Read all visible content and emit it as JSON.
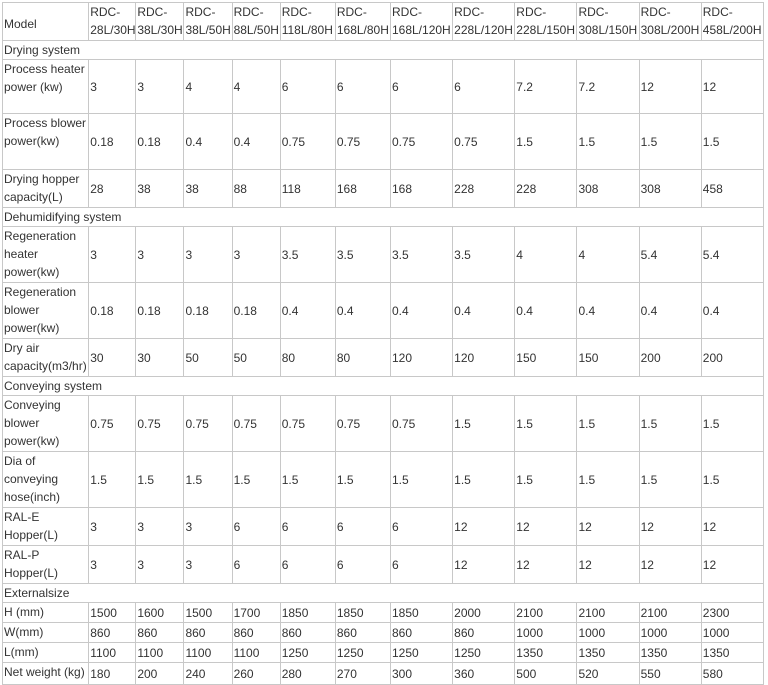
{
  "header": {
    "label": "Model",
    "models": [
      "RDC-28L/30H",
      "RDC-38L/30H",
      "RDC-38L/50H",
      "RDC-88L/50H",
      "RDC-118L/80H",
      "RDC-168L/80H",
      "RDC-168L/120H",
      "RDC-228L/120H",
      "RDC-228L/150H",
      "RDC-308L/150H",
      "RDC-308L/200H",
      "RDC-458L/200H"
    ]
  },
  "sections": [
    {
      "title": "Drying system",
      "rows": [
        {
          "label": "Process heater power (kw)",
          "values": [
            "3",
            "3",
            "4",
            "4",
            "6",
            "6",
            "6",
            "6",
            "7.2",
            "7.2",
            "12",
            "12"
          ]
        },
        {
          "label": "Process blower power(kw)",
          "values": [
            "0.18",
            "0.18",
            "0.4",
            "0.4",
            "0.75",
            "0.75",
            "0.75",
            "0.75",
            "1.5",
            "1.5",
            "1.5",
            "1.5"
          ]
        },
        {
          "label": "Drying hopper capacity(L)",
          "values": [
            "28",
            "38",
            "38",
            "88",
            "118",
            "168",
            "168",
            "228",
            "228",
            "308",
            "308",
            "458"
          ]
        }
      ]
    },
    {
      "title": "Dehumidifying system",
      "rows": [
        {
          "label": "Regeneration heater power(kw)",
          "values": [
            "3",
            "3",
            "3",
            "3",
            "3.5",
            "3.5",
            "3.5",
            "3.5",
            "4",
            "4",
            "5.4",
            "5.4"
          ]
        },
        {
          "label": "Regeneration blower power(kw)",
          "values": [
            "0.18",
            "0.18",
            "0.18",
            "0.18",
            "0.4",
            "0.4",
            "0.4",
            "0.4",
            "0.4",
            "0.4",
            "0.4",
            "0.4"
          ]
        },
        {
          "label": "Dry air capacity(m3/hr)",
          "values": [
            "30",
            "30",
            "50",
            "50",
            "80",
            "80",
            "120",
            "120",
            "150",
            "150",
            "200",
            "200"
          ]
        }
      ]
    },
    {
      "title": "Conveying system",
      "rows": [
        {
          "label": "Conveying blower power(kw)",
          "values": [
            "0.75",
            "0.75",
            "0.75",
            "0.75",
            "0.75",
            "0.75",
            "0.75",
            "1.5",
            "1.5",
            "1.5",
            "1.5",
            "1.5"
          ]
        },
        {
          "label": "Dia of conveying hose(inch)",
          "values": [
            "1.5",
            "1.5",
            "1.5",
            "1.5",
            "1.5",
            "1.5",
            "1.5",
            "1.5",
            "1.5",
            "1.5",
            "1.5",
            "1.5"
          ]
        },
        {
          "label": "RAL-E Hopper(L)",
          "values": [
            "3",
            "3",
            "3",
            "6",
            "6",
            "6",
            "6",
            "12",
            "12",
            "12",
            "12",
            "12"
          ]
        },
        {
          "label": "RAL-P Hopper(L)",
          "values": [
            "3",
            "3",
            "3",
            "6",
            "6",
            "6",
            "6",
            "12",
            "12",
            "12",
            "12",
            "12"
          ]
        }
      ]
    },
    {
      "title": "Externalsize",
      "rows": [
        {
          "label": "H (mm)",
          "values": [
            "1500",
            "1600",
            "1500",
            "1700",
            "1850",
            "1850",
            "1850",
            "2000",
            "2100",
            "2100",
            "2100",
            "2300"
          ]
        },
        {
          "label": "W(mm)",
          "values": [
            "860",
            "860",
            "860",
            "860",
            "860",
            "860",
            "860",
            "860",
            "1000",
            "1000",
            "1000",
            "1000"
          ]
        },
        {
          "label": "L(mm)",
          "values": [
            "1100",
            "1100",
            "1100",
            "1100",
            "1250",
            "1250",
            "1250",
            "1250",
            "1350",
            "1350",
            "1350",
            "1350"
          ]
        },
        {
          "label": "Net weight (kg)",
          "values": [
            "180",
            "200",
            "240",
            "260",
            "280",
            "270",
            "300",
            "360",
            "500",
            "520",
            "550",
            "580"
          ]
        }
      ]
    }
  ]
}
